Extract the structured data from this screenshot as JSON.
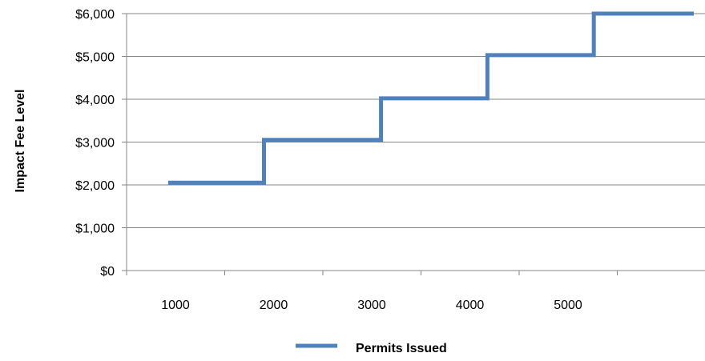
{
  "chart_data": {
    "type": "line",
    "step": true,
    "title": "",
    "xlabel": "",
    "ylabel": "Impact Fee Level",
    "ylim": [
      0,
      6000
    ],
    "y_ticks": [
      0,
      1000,
      2000,
      3000,
      4000,
      5000,
      6000
    ],
    "y_tick_labels": [
      "$0",
      "$1,000",
      "$2,000",
      "$3,000",
      "$4,000",
      "$5,000",
      "$6,000"
    ],
    "x_tick_labels": [
      "1000",
      "2000",
      "3000",
      "4000",
      "5000"
    ],
    "grid": true,
    "legend": "bottom",
    "series": [
      {
        "name": "Permits Issued",
        "color": "#4f81bd",
        "points": [
          {
            "x": 1000,
            "y": 2050
          },
          {
            "x": 1900,
            "y": 2050
          },
          {
            "x": 1900,
            "y": 3050
          },
          {
            "x": 3000,
            "y": 3050
          },
          {
            "x": 3000,
            "y": 4020
          },
          {
            "x": 4000,
            "y": 4020
          },
          {
            "x": 4000,
            "y": 5030
          },
          {
            "x": 5000,
            "y": 5030
          },
          {
            "x": 5000,
            "y": 6000
          },
          {
            "x": 6000,
            "y": 6000
          }
        ]
      }
    ]
  }
}
